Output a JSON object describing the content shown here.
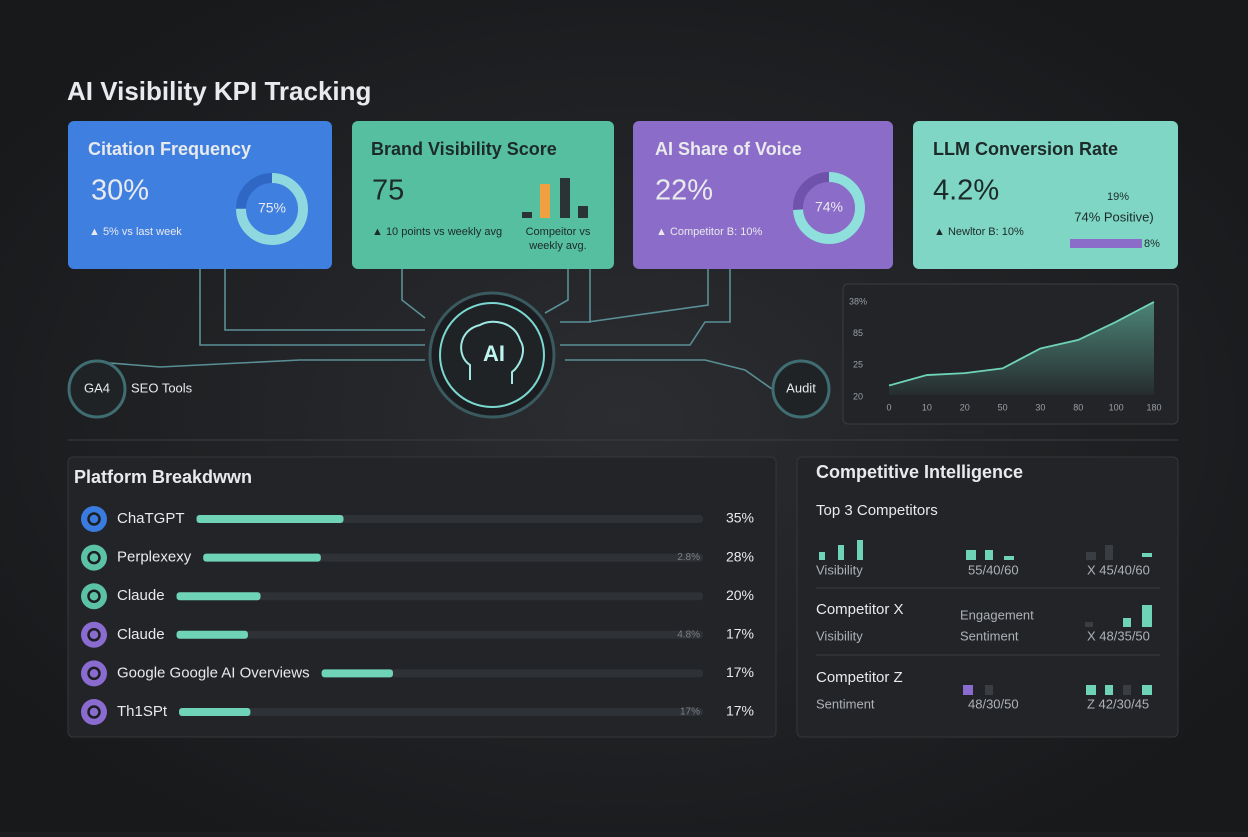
{
  "header": {
    "title": "AI Visibility KPI Tracking"
  },
  "cards": [
    {
      "title": "Citation Frequency",
      "value": "30%",
      "delta": "▲ 5% vs last week",
      "donut": {
        "value": 75,
        "label": "75%"
      }
    },
    {
      "title": "Brand Visibility Score",
      "value": "75",
      "delta": "▲ 10 points vs weekly avg",
      "note": [
        "Compeitor vs",
        "weekly avg."
      ]
    },
    {
      "title": "AI Share of Voice",
      "value": "22%",
      "delta": "▲ Competitor B: 10%",
      "donut": {
        "value": 74,
        "label": "74%"
      }
    },
    {
      "title": "LLM Conversion Rate",
      "value": "4.2%",
      "delta": "▲ Newltor B: 10%",
      "side": [
        "19%",
        "74% Positive)",
        "8%"
      ]
    }
  ],
  "hub": {
    "center": "AI",
    "left_badge": "GA4",
    "left_label": "SEO Tools",
    "right_badge": "Audit"
  },
  "trend_chart": {
    "categories": [
      "0",
      "10",
      "20",
      "50",
      "30",
      "80",
      "100",
      "180"
    ],
    "y_labels": [
      "38%",
      "85",
      "25",
      "20"
    ],
    "ylim": [
      0,
      100
    ],
    "values": [
      10,
      21,
      23,
      28,
      49,
      58,
      77,
      98
    ],
    "color": "#6fd3b8"
  },
  "platform": {
    "title": "Platform Breakdwwn",
    "rows": [
      {
        "name": "ChaTGPT",
        "value": 35,
        "value_label": "35%",
        "color": "#3a7be0"
      },
      {
        "name": "Perplexexy",
        "value": 28,
        "value_label": "28%",
        "ghost": "2.8%",
        "color": "#5cc2a6"
      },
      {
        "name": "Claude",
        "value": 20,
        "value_label": "20%",
        "color": "#5cc2a6"
      },
      {
        "name": "Claude",
        "value": 17,
        "value_label": "17%",
        "ghost": "4.8%",
        "color": "#8a6bd0"
      },
      {
        "name": "Google Google AI Overviews",
        "value": 17,
        "value_label": "17%",
        "color": "#8a6bd0"
      },
      {
        "name": "Th1SPt",
        "value": 17,
        "value_label": "17%",
        "ghost": "17%",
        "color": "#8a6bd0"
      }
    ]
  },
  "competitive": {
    "title": "Competitive Intelligence",
    "subtitle": "Top 3 Competitors",
    "rows": [
      {
        "label": "Visibility",
        "mid": "55/40/60",
        "right": "X 45/40/60"
      },
      {
        "name": "Competitor X",
        "label": "Visibility",
        "mid_top": "Engagement",
        "mid": "Sentiment",
        "right": "X 48/35/50"
      },
      {
        "name": "Competitor Z",
        "label": "Sentiment",
        "mid": "48/30/50",
        "right": "Z 42/30/45"
      }
    ]
  }
}
